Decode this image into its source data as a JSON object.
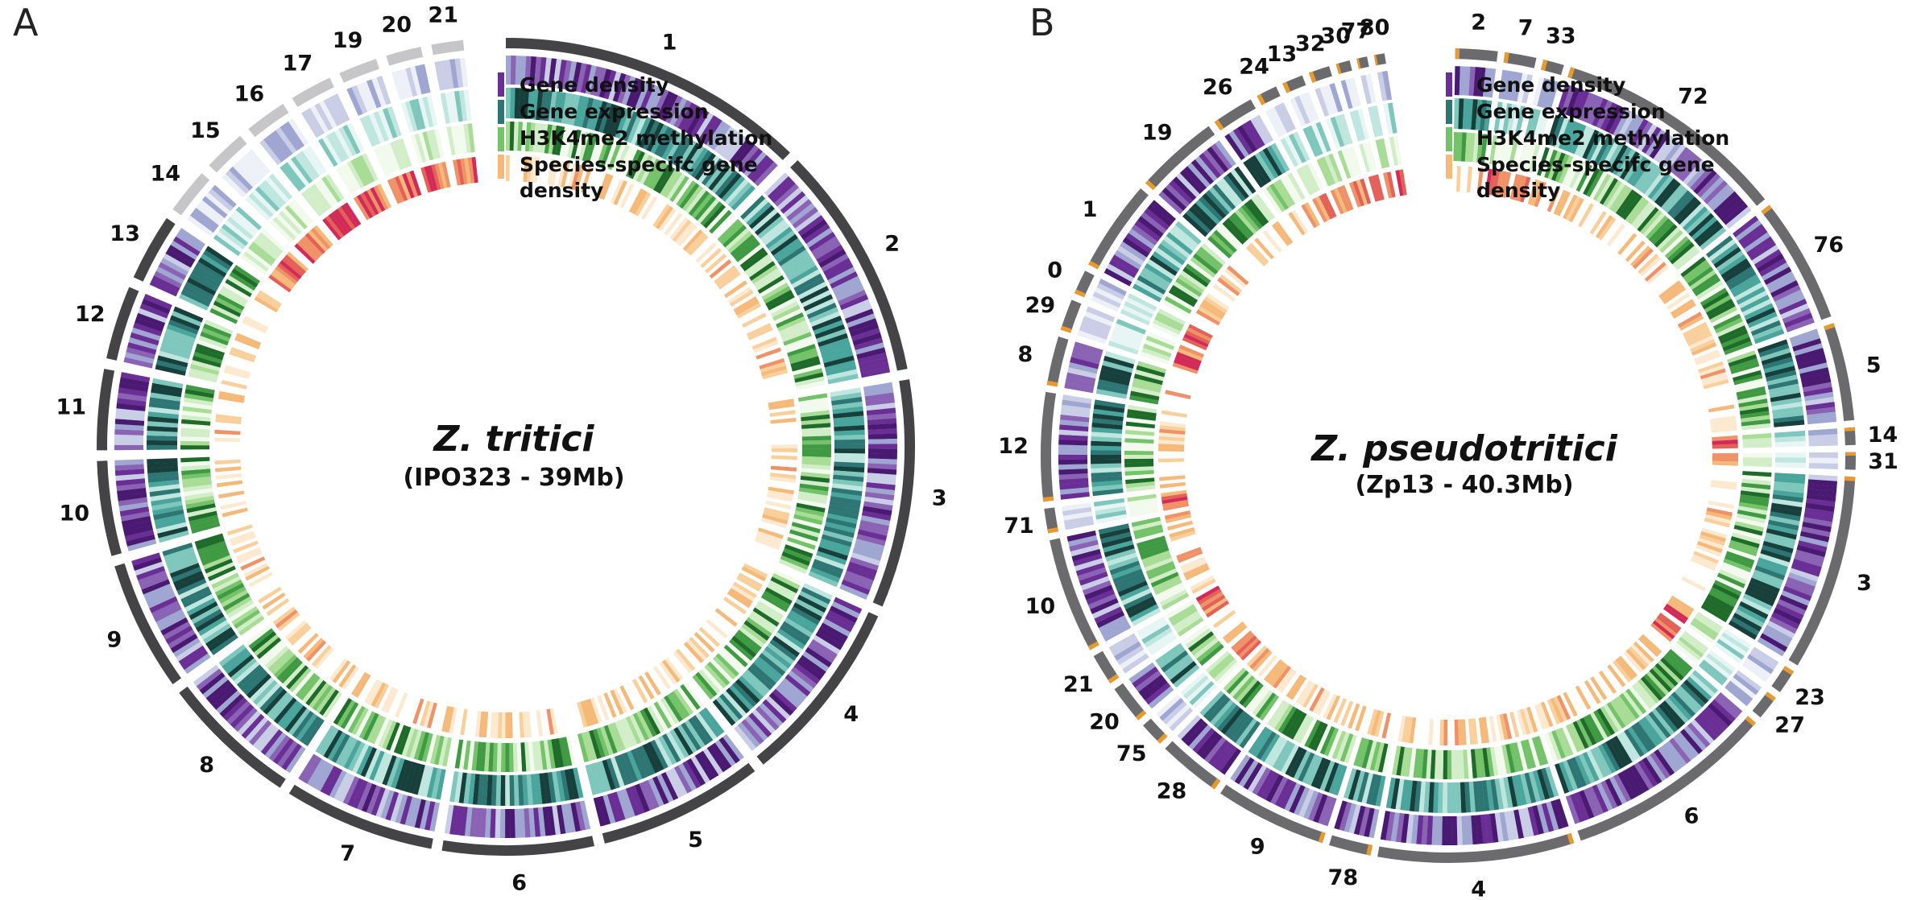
{
  "colors": {
    "chr_dark": "#444446",
    "chr_mid": "#6b6b6d",
    "chr_light": "#c6c6c8",
    "accent_orange": "#e89a2c",
    "density": [
      "#eef0f8",
      "#c9cde6",
      "#9fa6d2",
      "#8a63b5",
      "#6a2f95",
      "#4a1a72"
    ],
    "expression": [
      "#e7f6f4",
      "#bfe6df",
      "#7fc7bd",
      "#4aa59c",
      "#2e7673",
      "#17403d"
    ],
    "methylation": [
      "#f2faee",
      "#d2eec8",
      "#a9dc96",
      "#74c26a",
      "#3f9a43",
      "#1f6b2a"
    ],
    "specific": [
      "#fde9cf",
      "#f9d09c",
      "#f5b97a",
      "#ef9268",
      "#e46158",
      "#d22b57"
    ]
  },
  "panels": [
    {
      "letter": "A",
      "title": "Z. tritici",
      "subtitle": "(IPO323 - 39Mb)",
      "legend": [
        "Gene density",
        "Gene expression",
        "H3K4me2 methylation",
        "Species-specifc gene",
        "density"
      ],
      "chromosomes": [
        {
          "label": "1",
          "start": 0,
          "end": 44,
          "dark": true
        },
        {
          "label": "2",
          "start": 45.5,
          "end": 79,
          "dark": true
        },
        {
          "label": "3",
          "start": 80.5,
          "end": 113,
          "dark": true
        },
        {
          "label": "4",
          "start": 114.5,
          "end": 141,
          "dark": true
        },
        {
          "label": "5",
          "start": 142.5,
          "end": 166,
          "dark": true
        },
        {
          "label": "6",
          "start": 167.5,
          "end": 189,
          "dark": true
        },
        {
          "label": "7",
          "start": 190.5,
          "end": 212,
          "dark": true
        },
        {
          "label": "8",
          "start": 213.5,
          "end": 233,
          "dark": true
        },
        {
          "label": "9",
          "start": 234.5,
          "end": 253,
          "dark": true
        },
        {
          "label": "10",
          "start": 254.5,
          "end": 268,
          "dark": true
        },
        {
          "label": "11",
          "start": 269.5,
          "end": 281,
          "dark": true
        },
        {
          "label": "12",
          "start": 282.5,
          "end": 293,
          "dark": true
        },
        {
          "label": "13",
          "start": 294.5,
          "end": 304,
          "dark": true
        },
        {
          "label": "14",
          "start": 305.5,
          "end": 312,
          "dark": false
        },
        {
          "label": "15",
          "start": 313.5,
          "end": 319.5,
          "dark": false
        },
        {
          "label": "16",
          "start": 321,
          "end": 327,
          "dark": false
        },
        {
          "label": "17",
          "start": 328.5,
          "end": 334.5,
          "dark": false
        },
        {
          "label": "19",
          "start": 336,
          "end": 341.5,
          "dark": false
        },
        {
          "label": "20",
          "start": 343,
          "end": 348,
          "dark": false
        },
        {
          "label": "21",
          "start": 349.5,
          "end": 354,
          "dark": false
        }
      ]
    },
    {
      "letter": "B",
      "title": "Z. pseudotritici",
      "subtitle": "(Zp13 - 40.3Mb)",
      "legend": [
        "Gene density",
        "Gene expression",
        "H3K4me2 methylation",
        "Species-specifc gene",
        "density"
      ],
      "chromosomes": [
        {
          "label": "2",
          "start": 0,
          "end": 6,
          "dark": true
        },
        {
          "label": "7",
          "start": 7,
          "end": 11.5,
          "dark": true
        },
        {
          "label": "33",
          "start": 12.5,
          "end": 15.5,
          "dark": true
        },
        {
          "label": "72",
          "start": 16.5,
          "end": 50,
          "dark": true
        },
        {
          "label": "76",
          "start": 51,
          "end": 69,
          "dark": true
        },
        {
          "label": "5",
          "start": 70,
          "end": 84,
          "dark": true
        },
        {
          "label": "14",
          "start": 85,
          "end": 87.5,
          "dark": true
        },
        {
          "label": "31",
          "start": 88.5,
          "end": 91,
          "dark": true
        },
        {
          "label": "3",
          "start": 92,
          "end": 120,
          "dark": true
        },
        {
          "label": "23",
          "start": 121,
          "end": 124.5,
          "dark": true
        },
        {
          "label": "27",
          "start": 125.5,
          "end": 129,
          "dark": true
        },
        {
          "label": "6",
          "start": 130,
          "end": 160,
          "dark": true
        },
        {
          "label": "4",
          "start": 161,
          "end": 189,
          "dark": true
        },
        {
          "label": "78",
          "start": 190,
          "end": 196,
          "dark": true
        },
        {
          "label": "9",
          "start": 197,
          "end": 213,
          "dark": true
        },
        {
          "label": "28",
          "start": 214,
          "end": 223,
          "dark": true
        },
        {
          "label": "75",
          "start": 224,
          "end": 227.5,
          "dark": true
        },
        {
          "label": "20",
          "start": 228.5,
          "end": 234,
          "dark": true
        },
        {
          "label": "21",
          "start": 235,
          "end": 239.5,
          "dark": true
        },
        {
          "label": "10",
          "start": 240.5,
          "end": 257,
          "dark": true
        },
        {
          "label": "71",
          "start": 258,
          "end": 261.5,
          "dark": true
        },
        {
          "label": "12",
          "start": 262.5,
          "end": 278,
          "dark": true
        },
        {
          "label": "8",
          "start": 279,
          "end": 286,
          "dark": true
        },
        {
          "label": "29",
          "start": 287,
          "end": 291.5,
          "dark": true
        },
        {
          "label": "0",
          "start": 292.5,
          "end": 296,
          "dark": true
        },
        {
          "label": "1",
          "start": 297,
          "end": 310,
          "dark": true
        },
        {
          "label": "19",
          "start": 311,
          "end": 323,
          "dark": true
        },
        {
          "label": "26",
          "start": 324,
          "end": 330,
          "dark": true
        },
        {
          "label": "24",
          "start": 331,
          "end": 334,
          "dark": true
        },
        {
          "label": "13",
          "start": 335,
          "end": 338,
          "dark": true
        },
        {
          "label": "32",
          "start": 339,
          "end": 342,
          "dark": true
        },
        {
          "label": "30",
          "start": 343,
          "end": 345,
          "dark": true
        },
        {
          "label": "77",
          "start": 346,
          "end": 347.5,
          "dark": true
        },
        {
          "label": "80",
          "start": 348.5,
          "end": 350,
          "dark": true
        }
      ]
    }
  ]
}
